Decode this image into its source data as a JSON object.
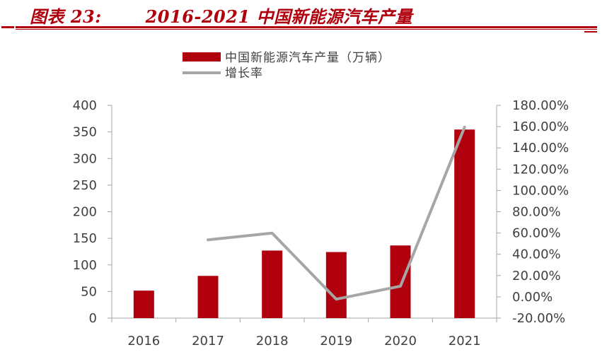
{
  "header": {
    "title": "图表 23:       2016-2021 中国新能源汽车产量",
    "color": "#b0000e"
  },
  "chart_data": {
    "type": "bar",
    "categories": [
      "2016",
      "2017",
      "2018",
      "2019",
      "2020",
      "2021"
    ],
    "series": [
      {
        "name": "中国新能源汽车产量（万辆）",
        "kind": "bar",
        "axis": "left",
        "color": "#b0000e",
        "values": [
          51.7,
          79.4,
          127,
          124.2,
          136.6,
          354.5
        ]
      },
      {
        "name": "增长率",
        "kind": "line",
        "axis": "right",
        "color": "#a6a6a6",
        "values": [
          null,
          53.6,
          59.9,
          -2.2,
          10.0,
          159.5
        ]
      }
    ],
    "y_left": {
      "ticks": [
        "0",
        "50",
        "100",
        "150",
        "200",
        "250",
        "300",
        "350",
        "400"
      ],
      "ylim": [
        0,
        400
      ]
    },
    "y_right": {
      "ticks": [
        "-20.00%",
        "0.00%",
        "20.00%",
        "40.00%",
        "60.00%",
        "80.00%",
        "100.00%",
        "120.00%",
        "140.00%",
        "160.00%",
        "180.00%"
      ],
      "ylim": [
        -20,
        180
      ]
    },
    "legend_position": "top",
    "grid": false
  }
}
